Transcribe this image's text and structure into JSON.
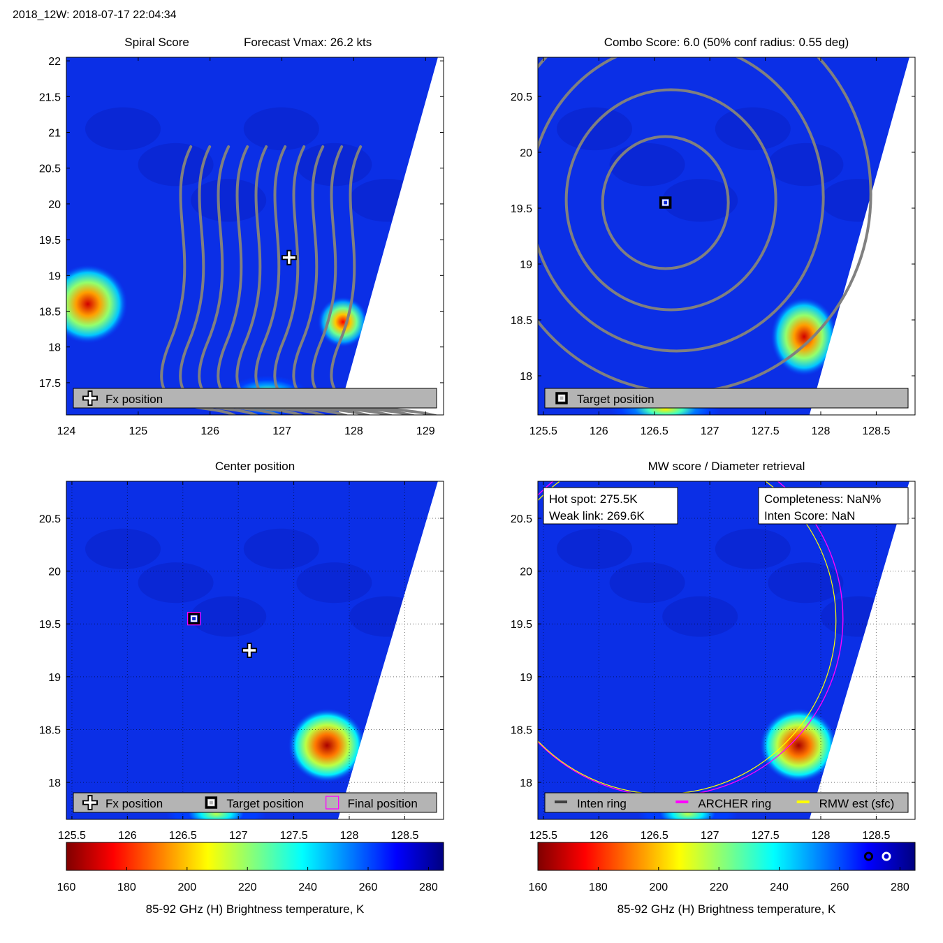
{
  "header": "2018_12W: 2018-07-17 22:04:34",
  "colors": {
    "background_cold": "#0b2fe6",
    "contour": "#808080",
    "legend_box": "#b4b4b4",
    "archer_ring": "#ff00ff",
    "rmw_ring": "#ffff00",
    "inten_ring": "#404040"
  },
  "colormap": [
    "#800000",
    "#ff0000",
    "#ff8000",
    "#ffff00",
    "#80ff80",
    "#00ffff",
    "#0080ff",
    "#0000ff",
    "#000080"
  ],
  "chart_data": [
    {
      "type": "heatmap",
      "panel": "spiral",
      "title_left": "Spiral Score",
      "title_right": "Forecast Vmax: 26.2 kts",
      "xlim": [
        124,
        129.25
      ],
      "ylim": [
        17.05,
        22.05
      ],
      "xticks": [
        124,
        125,
        126,
        127,
        128,
        129
      ],
      "yticks": [
        17.5,
        18,
        18.5,
        19,
        19.5,
        20,
        20.5,
        21,
        21.5,
        22
      ],
      "hot_spots": [
        {
          "x": 124.3,
          "y": 18.6,
          "temp": 170,
          "rx": 0.55,
          "ry": 0.55
        },
        {
          "x": 127.85,
          "y": 18.35,
          "temp": 175,
          "rx": 0.35,
          "ry": 0.35
        },
        {
          "x": 126.8,
          "y": 17.3,
          "temp": 200,
          "rx": 0.6,
          "ry": 0.3
        }
      ],
      "markers": [
        {
          "kind": "cross",
          "x": 127.1,
          "y": 19.25
        }
      ],
      "legend": {
        "location": "bottom",
        "items": [
          {
            "symbol": "cross",
            "label": "Fx position"
          }
        ]
      }
    },
    {
      "type": "heatmap",
      "panel": "combo",
      "title": "Combo Score: 6.0  (50% conf radius: 0.55 deg)",
      "xlim": [
        125.45,
        128.85
      ],
      "ylim": [
        17.65,
        20.85
      ],
      "xticks": [
        125.5,
        126,
        126.5,
        127,
        127.5,
        128,
        128.5
      ],
      "yticks": [
        18,
        18.5,
        19,
        19.5,
        20,
        20.5
      ],
      "hot_spots": [
        {
          "x": 127.85,
          "y": 18.35,
          "temp": 170,
          "rx": 0.3,
          "ry": 0.35
        },
        {
          "x": 126.6,
          "y": 17.7,
          "temp": 205,
          "rx": 0.5,
          "ry": 0.15
        }
      ],
      "markers": [
        {
          "kind": "square",
          "x": 126.6,
          "y": 19.55
        }
      ],
      "legend": {
        "location": "bottom",
        "items": [
          {
            "symbol": "square",
            "label": "Target position"
          }
        ]
      }
    },
    {
      "type": "heatmap",
      "panel": "center",
      "title": "Center position",
      "xlim": [
        125.45,
        128.85
      ],
      "ylim": [
        17.65,
        20.85
      ],
      "xticks": [
        125.5,
        126,
        126.5,
        127,
        127.5,
        128,
        128.5
      ],
      "yticks": [
        18,
        18.5,
        19,
        19.5,
        20,
        20.5
      ],
      "hot_spots": [
        {
          "x": 127.8,
          "y": 18.35,
          "temp": 165,
          "rx": 0.35,
          "ry": 0.35
        },
        {
          "x": 126.8,
          "y": 17.7,
          "temp": 215,
          "rx": 0.45,
          "ry": 0.18
        }
      ],
      "markers": [
        {
          "kind": "square",
          "x": 126.6,
          "y": 19.55
        },
        {
          "kind": "square_magenta",
          "x": 126.6,
          "y": 19.55
        },
        {
          "kind": "cross",
          "x": 127.1,
          "y": 19.25
        }
      ],
      "legend": {
        "location": "bottom",
        "items": [
          {
            "symbol": "cross",
            "label": "Fx position"
          },
          {
            "symbol": "square",
            "label": "Target position"
          },
          {
            "symbol": "square_magenta",
            "label": "Final position"
          }
        ]
      }
    },
    {
      "type": "heatmap",
      "panel": "mw",
      "title": "MW score / Diameter retrieval",
      "xlim": [
        125.45,
        128.85
      ],
      "ylim": [
        17.65,
        20.85
      ],
      "xticks": [
        125.5,
        126,
        126.5,
        127,
        127.5,
        128,
        128.5
      ],
      "yticks": [
        18,
        18.5,
        19,
        19.5,
        20,
        20.5
      ],
      "hot_spots": [
        {
          "x": 127.8,
          "y": 18.35,
          "temp": 165,
          "rx": 0.35,
          "ry": 0.35
        },
        {
          "x": 126.8,
          "y": 17.7,
          "temp": 215,
          "rx": 0.45,
          "ry": 0.18
        }
      ],
      "rings": [
        {
          "x": 126.6,
          "y": 19.55,
          "r": 1.6
        }
      ],
      "info_left": [
        "Hot spot: 275.5K",
        "Weak link: 269.6K"
      ],
      "info_right": [
        "Completeness: NaN%",
        "Inten Score: NaN"
      ],
      "legend": {
        "location": "bottom",
        "items": [
          {
            "symbol": "line_dark",
            "label": "Inten ring"
          },
          {
            "symbol": "line_magenta",
            "label": "ARCHER ring"
          },
          {
            "symbol": "line_yellow",
            "label": "RMW est (sfc)"
          }
        ]
      }
    }
  ],
  "colorbars": [
    {
      "label": "85-92 GHz (H) Brightness temperature, K",
      "min": 160,
      "max": 285,
      "ticks": [
        160,
        180,
        200,
        220,
        240,
        260,
        280
      ],
      "markers": []
    },
    {
      "label": "85-92 GHz (H) Brightness temperature, K",
      "min": 160,
      "max": 285,
      "ticks": [
        160,
        180,
        200,
        220,
        240,
        260,
        280
      ],
      "markers": [
        275.5,
        269.6
      ]
    }
  ]
}
